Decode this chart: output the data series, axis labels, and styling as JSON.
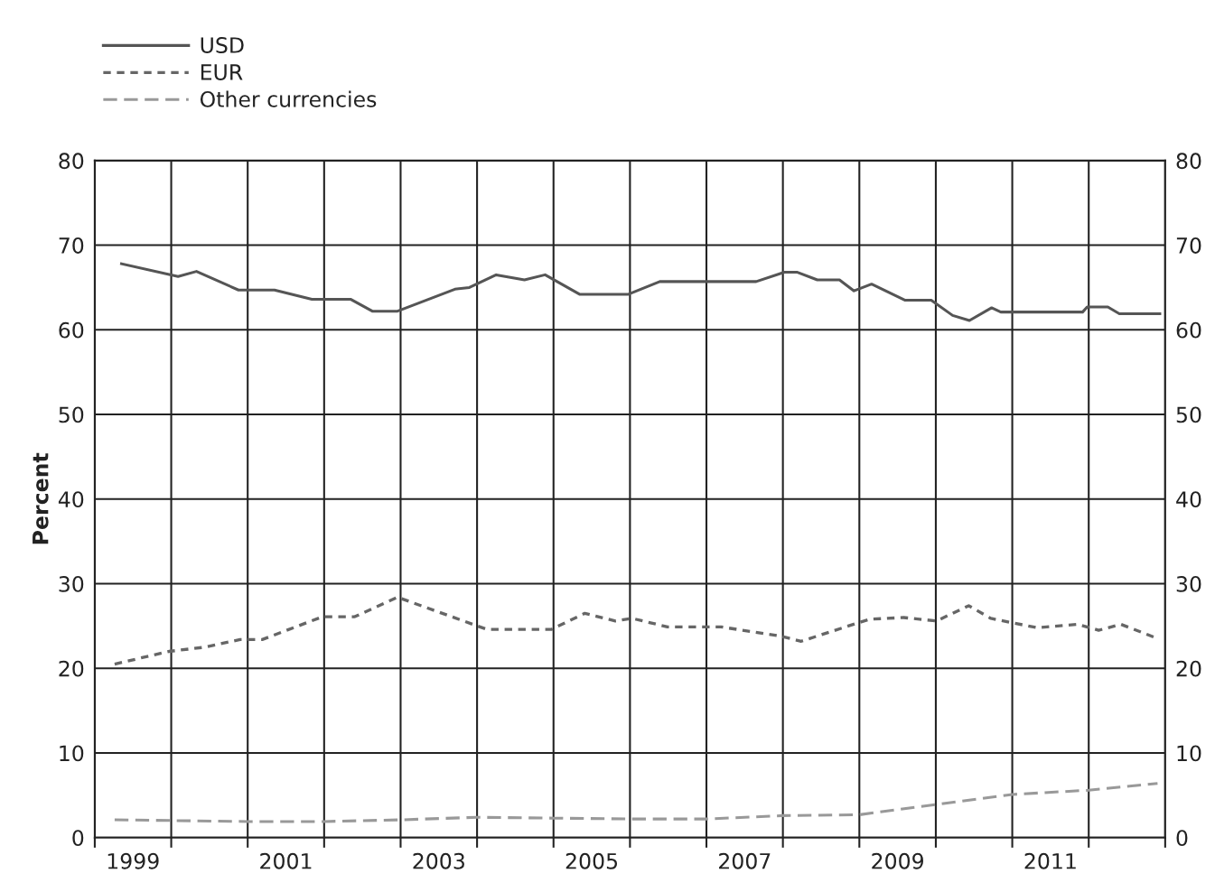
{
  "chart_data": {
    "type": "line",
    "ylabel": "Percent",
    "xlim": [
      1999,
      2013
    ],
    "ylim": [
      0,
      80
    ],
    "y2lim": [
      0,
      80
    ],
    "xticks": [
      {
        "value": 1999,
        "label": null
      },
      {
        "value": 1999.5,
        "label": "1999"
      },
      {
        "value": 2000,
        "label": null
      },
      {
        "value": 2001,
        "label": null
      },
      {
        "value": 2001.5,
        "label": "2001"
      },
      {
        "value": 2002,
        "label": null
      },
      {
        "value": 2003,
        "label": null
      },
      {
        "value": 2003.5,
        "label": "2003"
      },
      {
        "value": 2004,
        "label": null
      },
      {
        "value": 2005,
        "label": null
      },
      {
        "value": 2005.5,
        "label": "2005"
      },
      {
        "value": 2006,
        "label": null
      },
      {
        "value": 2007,
        "label": null
      },
      {
        "value": 2007.5,
        "label": "2007"
      },
      {
        "value": 2008,
        "label": null
      },
      {
        "value": 2009,
        "label": null
      },
      {
        "value": 2009.5,
        "label": "2009"
      },
      {
        "value": 2010,
        "label": null
      },
      {
        "value": 2011,
        "label": null
      },
      {
        "value": 2011.5,
        "label": "2011"
      },
      {
        "value": 2012,
        "label": null
      },
      {
        "value": 2013,
        "label": null
      }
    ],
    "yticks": [
      0,
      10,
      20,
      30,
      40,
      50,
      60,
      70,
      80
    ],
    "y2ticks": [
      0,
      10,
      20,
      30,
      40,
      50,
      60,
      70,
      80
    ],
    "grid": true,
    "legend": "top left",
    "series": [
      {
        "name": "USD",
        "color": "#555555",
        "line_style": "solid",
        "x": [
          1999.35,
          2000.09,
          2000.33,
          2000.88,
          2001.35,
          2001.84,
          2002.35,
          2002.63,
          2002.96,
          2003.71,
          2003.9,
          2004.25,
          2004.62,
          2004.89,
          2005.34,
          2005.98,
          2006.39,
          2007.65,
          2008.02,
          2008.19,
          2008.45,
          2008.74,
          2008.93,
          2009.16,
          2009.6,
          2009.94,
          2010.22,
          2010.44,
          2010.73,
          2010.85,
          2011.92,
          2011.98,
          2012.25,
          2012.4,
          2012.93
        ],
        "values": [
          67.8,
          66.3,
          66.9,
          64.7,
          64.7,
          63.6,
          63.6,
          62.2,
          62.2,
          64.8,
          65.0,
          66.5,
          65.9,
          66.5,
          64.2,
          64.2,
          65.7,
          65.7,
          66.8,
          66.8,
          65.9,
          65.9,
          64.6,
          65.4,
          63.5,
          63.5,
          61.7,
          61.1,
          62.6,
          62.1,
          62.1,
          62.7,
          62.7,
          61.9,
          61.9
        ]
      },
      {
        "name": "EUR",
        "color": "#666666",
        "line_style": "dotted",
        "x": [
          1999.26,
          1999.97,
          2000.44,
          2000.9,
          2001.19,
          2001.98,
          2002.4,
          2002.96,
          2004.13,
          2004.97,
          2005.41,
          2005.81,
          2006.03,
          2006.49,
          2007.19,
          2007.97,
          2008.24,
          2008.99,
          2009.14,
          2009.58,
          2010.01,
          2010.43,
          2010.72,
          2010.99,
          2011.33,
          2011.86,
          2012.13,
          2012.42,
          2012.88
        ],
        "values": [
          20.5,
          22.0,
          22.5,
          23.4,
          23.4,
          26.1,
          26.1,
          28.4,
          24.6,
          24.6,
          26.5,
          25.6,
          25.9,
          24.9,
          24.9,
          23.8,
          23.2,
          25.4,
          25.8,
          26.0,
          25.6,
          27.4,
          25.9,
          25.4,
          24.8,
          25.2,
          24.5,
          25.2,
          23.6
        ]
      },
      {
        "name": "Other currencies",
        "color": "#999999",
        "line_style": "dashed",
        "x": [
          1999.26,
          2001.0,
          2002.0,
          2003.0,
          2004.0,
          2005.0,
          2006.0,
          2007.0,
          2008.0,
          2009.0,
          2010.0,
          2011.0,
          2012.0,
          2012.9
        ],
        "values": [
          2.1,
          1.9,
          1.9,
          2.1,
          2.4,
          2.3,
          2.2,
          2.2,
          2.6,
          2.7,
          3.9,
          5.1,
          5.6,
          6.4
        ]
      }
    ]
  }
}
